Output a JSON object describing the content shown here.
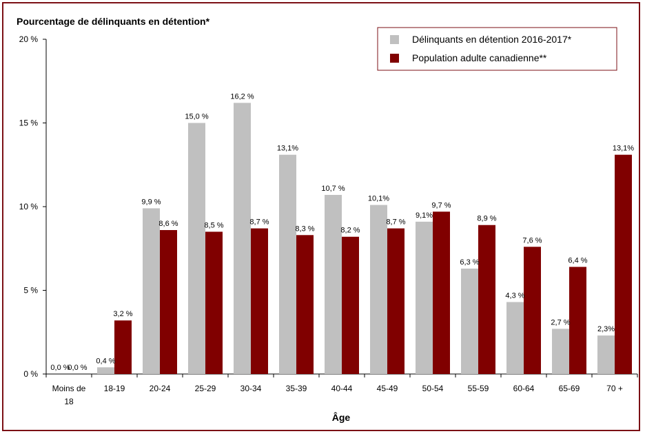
{
  "chart_data": {
    "type": "bar",
    "title": "Pourcentage de délinquants en détention*",
    "xlabel": "Âge",
    "ylabel": "",
    "ylim": [
      0,
      20
    ],
    "yticks": [
      0,
      5,
      10,
      15,
      20
    ],
    "ytick_labels": [
      "0 %",
      "5 %",
      "10 %",
      "15 %",
      "20 %"
    ],
    "categories": [
      "Moins de 18",
      "18-19",
      "20-24",
      "25-29",
      "30-34",
      "35-39",
      "40-44",
      "45-49",
      "50-54",
      "55-59",
      "60-64",
      "65-69",
      "70 +"
    ],
    "category_lines": [
      [
        "Moins de",
        "18"
      ],
      [
        "18-19"
      ],
      [
        "20-24"
      ],
      [
        "25-29"
      ],
      [
        "30-34"
      ],
      [
        "35-39"
      ],
      [
        "40-44"
      ],
      [
        "45-49"
      ],
      [
        "50-54"
      ],
      [
        "55-59"
      ],
      [
        "60-64"
      ],
      [
        "65-69"
      ],
      [
        "70 +"
      ]
    ],
    "grid": false,
    "legend_position": "top-right",
    "series": [
      {
        "name": "Délinquants en détention 2016-2017*",
        "color": "#c0c0c0",
        "values": [
          0.0,
          0.4,
          9.9,
          15.0,
          16.2,
          13.1,
          10.7,
          10.1,
          9.1,
          6.3,
          4.3,
          2.7,
          2.3
        ],
        "labels": [
          "0,0 %",
          "0,4 %",
          "9,9 %",
          "15,0 %",
          "16,2 %",
          "13,1%",
          "10,7 %",
          "10,1%",
          "9,1%",
          "6,3 %",
          "4,3 %",
          "2,7 %",
          "2,3%"
        ]
      },
      {
        "name": "Population adulte canadienne**",
        "color": "#800000",
        "values": [
          0.0,
          3.2,
          8.6,
          8.5,
          8.7,
          8.3,
          8.2,
          8.7,
          9.7,
          8.9,
          7.6,
          6.4,
          13.1
        ],
        "labels": [
          "0,0 %",
          "3,2 %",
          "8,6 %",
          "8,5 %",
          "8,7 %",
          "8,3 %",
          "8,2 %",
          "8,7 %",
          "9,7 %",
          "8,9 %",
          "7,6 %",
          "6,4 %",
          "13,1%"
        ]
      }
    ]
  }
}
